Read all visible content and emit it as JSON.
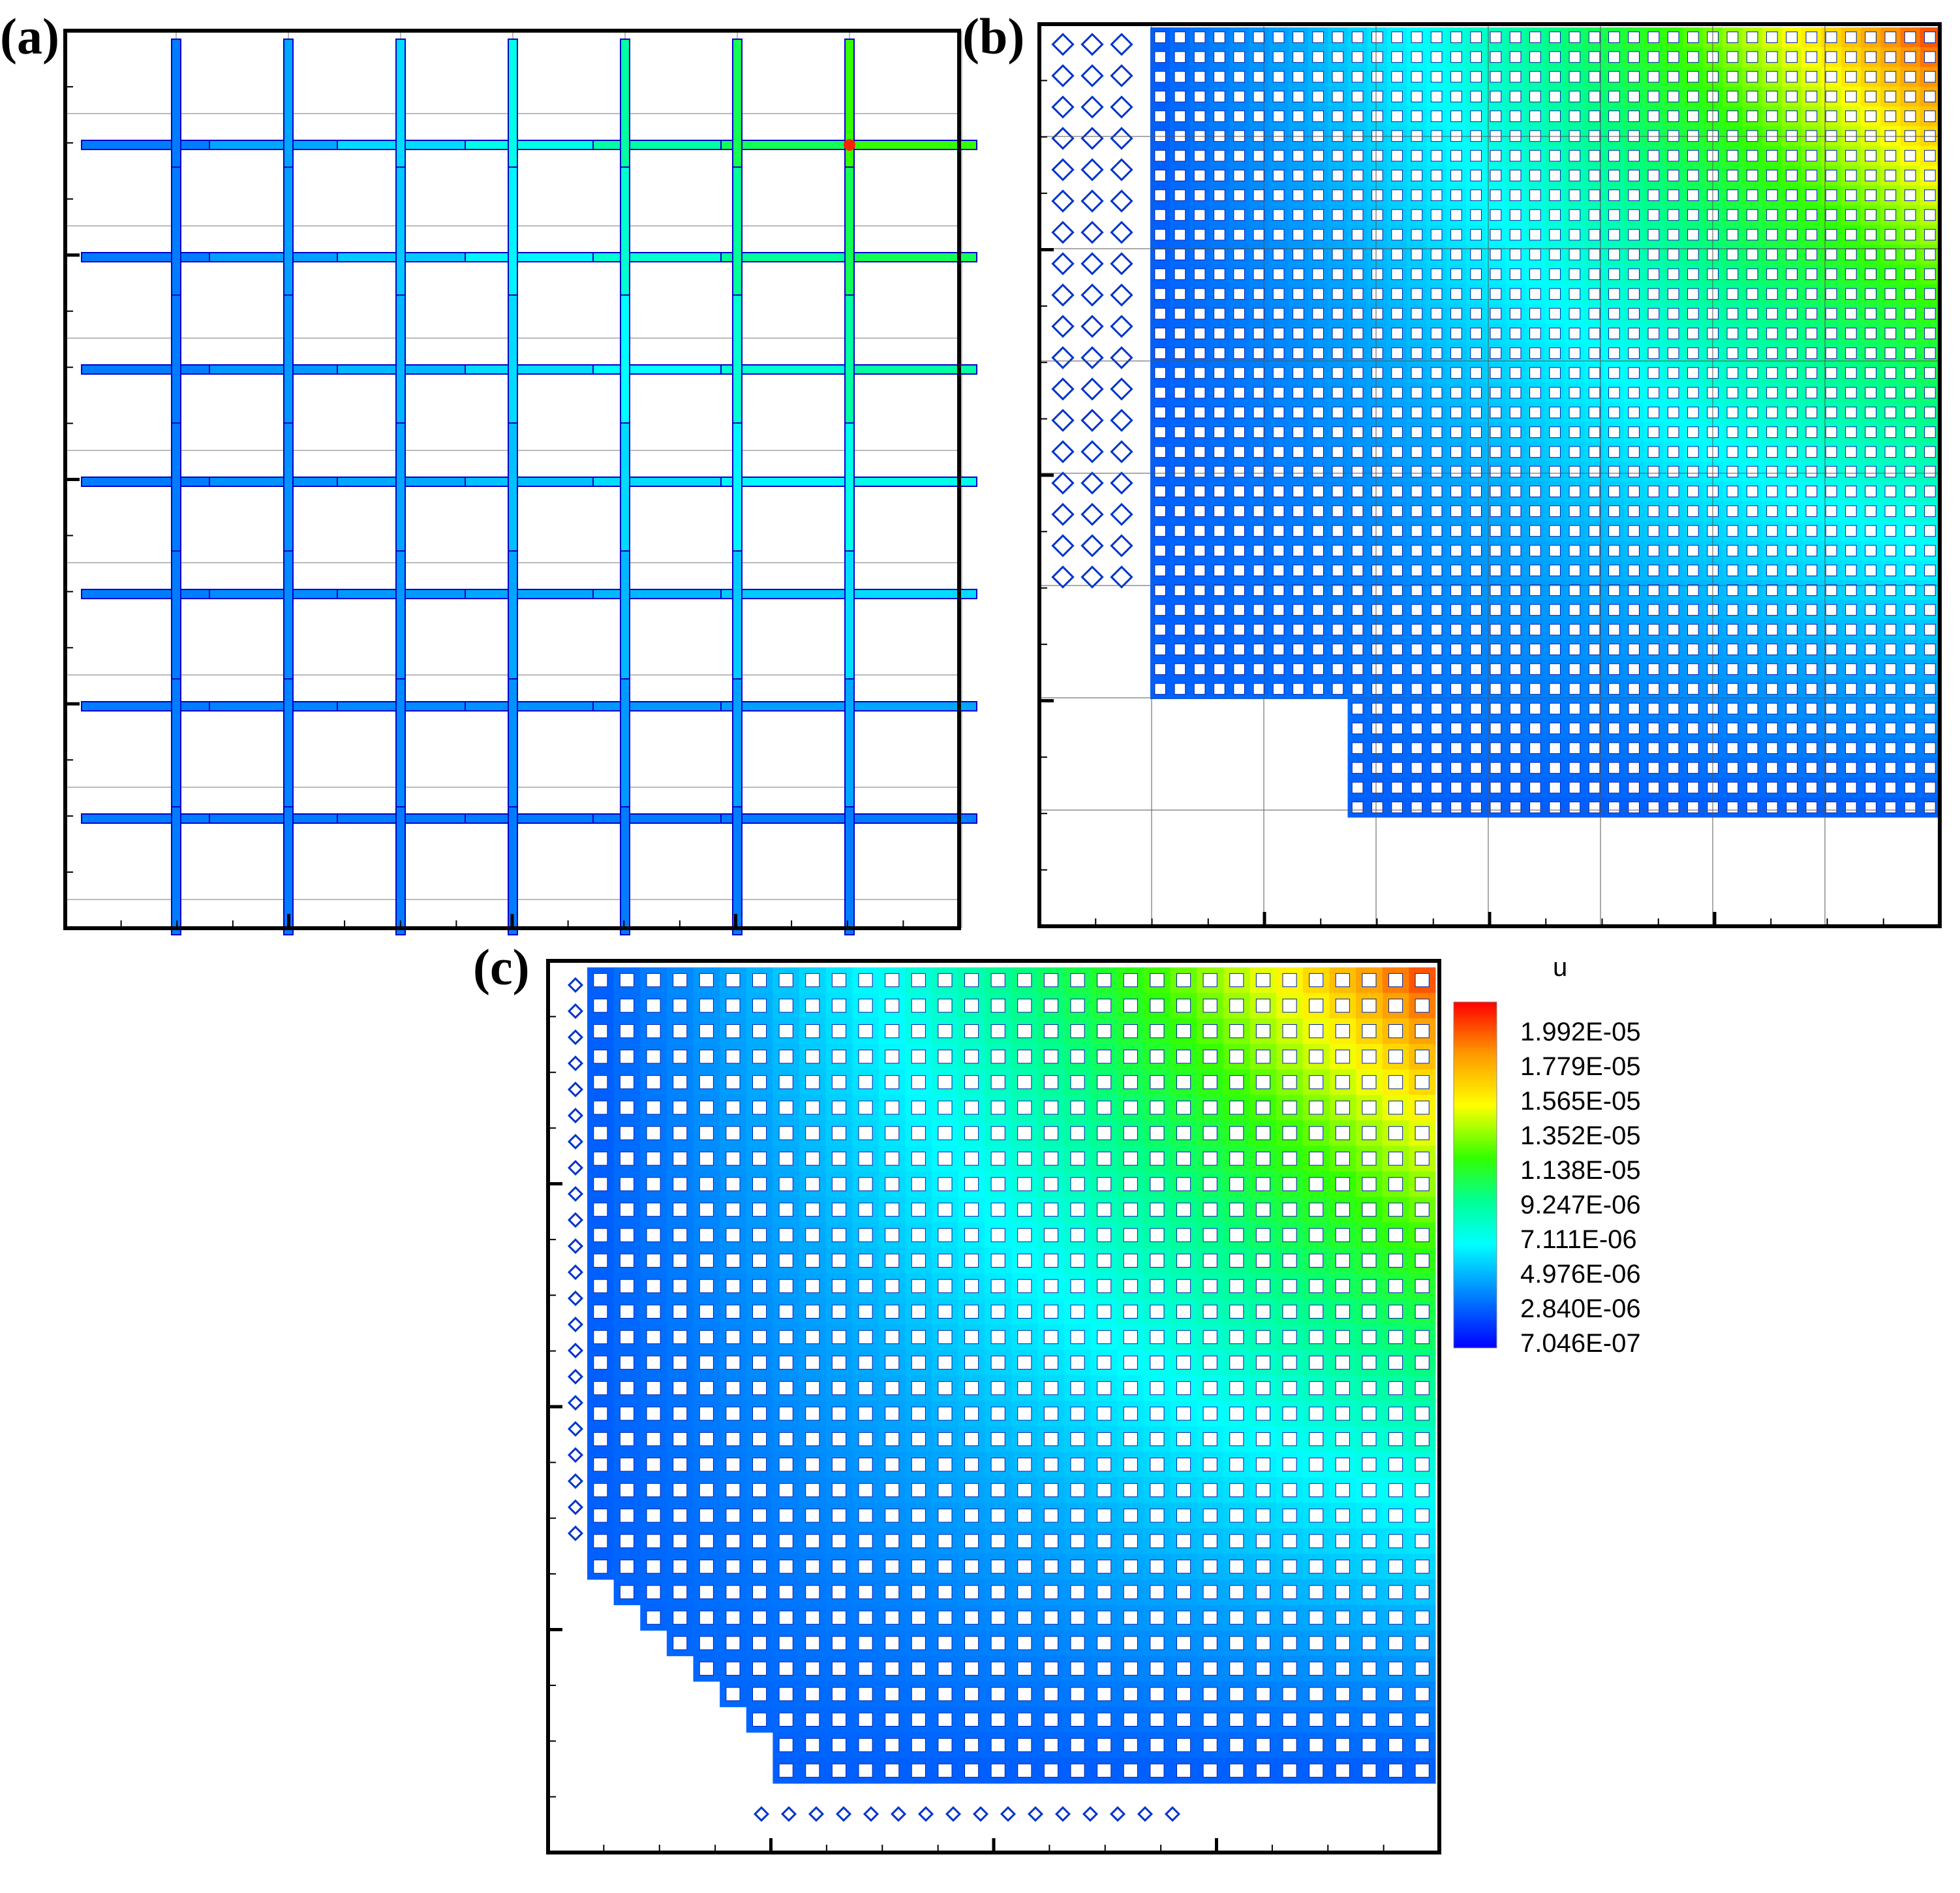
{
  "figure": {
    "panels": [
      {
        "label": "(a)",
        "grid_cells": 7,
        "ticks_major": 4,
        "ticks_minor": 16
      },
      {
        "label": "(b)",
        "grid_cells": 8,
        "ticks_major": 4,
        "ticks_minor": 16
      },
      {
        "label": "(c)",
        "grid_cells": 30,
        "ticks_major": 4,
        "ticks_minor": 16
      }
    ]
  },
  "legend": {
    "title": "u",
    "levels": [
      "1.992E-05",
      "1.779E-05",
      "1.565E-05",
      "1.352E-05",
      "1.138E-05",
      "9.247E-06",
      "7.111E-06",
      "4.976E-06",
      "2.840E-06",
      "7.046E-07"
    ],
    "colors": [
      "#ff0000",
      "#ffaa00",
      "#ffff00",
      "#55ff00",
      "#00ff00",
      "#00ff88",
      "#00ffff",
      "#00aaff",
      "#0055ff",
      "#0000ff"
    ]
  }
}
